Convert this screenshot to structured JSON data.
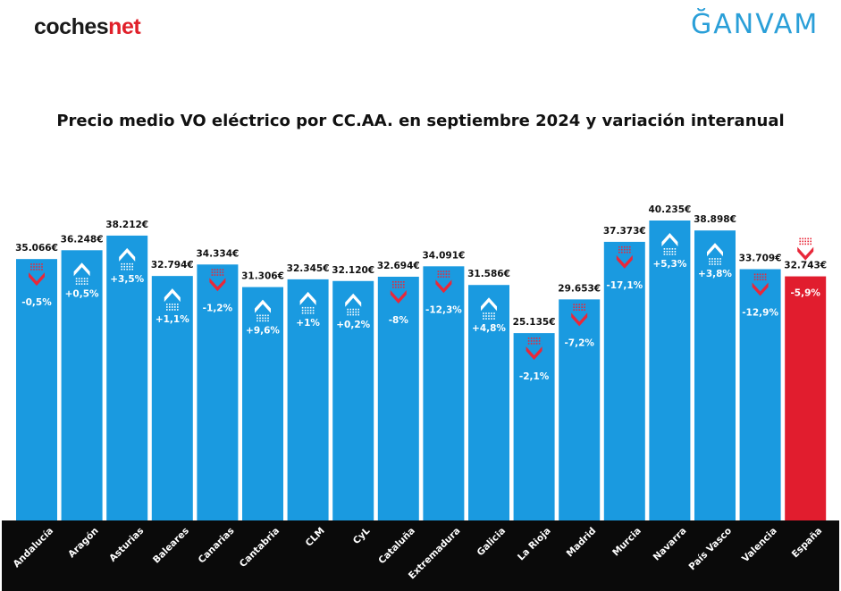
{
  "brand": {
    "left_logo_main": "coches",
    "left_logo_accent": "net",
    "right_logo": "ĞANVAM"
  },
  "colors": {
    "bar": "#1a9ae0",
    "bar_highlight": "#e11d2e",
    "arrow_up": "#ffffff",
    "arrow_down": "#e8283a",
    "axis_band": "#0a0a0a"
  },
  "chart_data": {
    "type": "bar",
    "title": "Precio medio VO eléctrico por CC.AA. en septiembre 2024 y variación interanual",
    "categories": [
      "Andalucía",
      "Aragón",
      "Asturias",
      "Baleares",
      "Canarias",
      "Cantabria",
      "CLM",
      "CyL",
      "Cataluña",
      "Extremadura",
      "Galicia",
      "La Rioja",
      "Madrid",
      "Murcia",
      "Navarra",
      "País Vasco",
      "Valencia",
      "España"
    ],
    "values": [
      35066,
      36248,
      38212,
      32794,
      34334,
      31306,
      32345,
      32120,
      32694,
      34091,
      31586,
      25135,
      29653,
      37373,
      40235,
      38898,
      33709,
      32743
    ],
    "value_labels": [
      "35.066€",
      "36.248€",
      "38.212€",
      "32.794€",
      "34.334€",
      "31.306€",
      "32.345€",
      "32.120€",
      "32.694€",
      "34.091€",
      "31.586€",
      "25.135€",
      "29.653€",
      "37.373€",
      "40.235€",
      "38.898€",
      "33.709€",
      "32.743€"
    ],
    "variation": [
      -0.5,
      0.5,
      3.5,
      1.1,
      -1.2,
      9.6,
      1,
      0.2,
      -8,
      -12.3,
      4.8,
      -2.1,
      -7.2,
      -17.1,
      5.3,
      3.8,
      -12.9,
      -5.9
    ],
    "variation_labels": [
      "-0,5%",
      "+0,5%",
      "+3,5%",
      "+1,1%",
      "-1,2%",
      "+9,6%",
      "+1%",
      "+0,2%",
      "-8%",
      "-12,3%",
      "+4,8%",
      "-2,1%",
      "-7,2%",
      "-17,1%",
      "+5,3%",
      "+3,8%",
      "-12,9%",
      "-5,9%"
    ],
    "highlight_index": 17,
    "ylim": [
      0,
      42000
    ],
    "grid": false
  }
}
